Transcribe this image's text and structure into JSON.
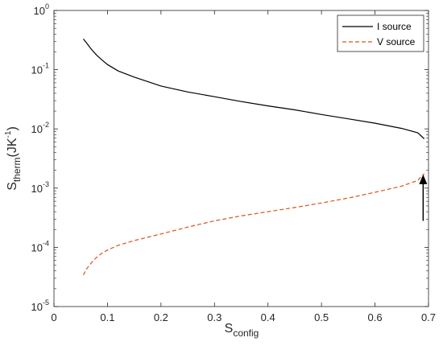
{
  "chart_data": {
    "type": "line",
    "xlabel_main": "S",
    "xlabel_sub": "config",
    "ylabel_main": "S",
    "ylabel_sub": "therm",
    "ylabel_unit_open": "(JK",
    "ylabel_unit_sup": "-1",
    "ylabel_unit_close": ")",
    "x_scale": "linear",
    "y_scale": "log",
    "xlim": [
      0,
      0.7
    ],
    "ylim": [
      1e-05,
      1
    ],
    "x_ticks": [
      0,
      0.1,
      0.2,
      0.3,
      0.4,
      0.5,
      0.6,
      0.7
    ],
    "x_tick_labels": [
      "0",
      "0.1",
      "0.2",
      "0.3",
      "0.4",
      "0.5",
      "0.6",
      "0.7"
    ],
    "y_ticks": [
      {
        "value": 1e-05,
        "base": "10",
        "exp": "-5"
      },
      {
        "value": 0.0001,
        "base": "10",
        "exp": "-4"
      },
      {
        "value": 0.001,
        "base": "10",
        "exp": "-3"
      },
      {
        "value": 0.01,
        "base": "10",
        "exp": "-2"
      },
      {
        "value": 0.1,
        "base": "10",
        "exp": "-1"
      },
      {
        "value": 1,
        "base": "10",
        "exp": "0"
      }
    ],
    "grid": false,
    "legend_position": "top-right",
    "series": [
      {
        "name": "I source",
        "color": "#000000",
        "dash": "solid",
        "points": [
          [
            0.055,
            0.33
          ],
          [
            0.06,
            0.29
          ],
          [
            0.07,
            0.22
          ],
          [
            0.08,
            0.175
          ],
          [
            0.09,
            0.145
          ],
          [
            0.1,
            0.122
          ],
          [
            0.12,
            0.095
          ],
          [
            0.15,
            0.075
          ],
          [
            0.2,
            0.053
          ],
          [
            0.25,
            0.042
          ],
          [
            0.3,
            0.035
          ],
          [
            0.35,
            0.029
          ],
          [
            0.4,
            0.0245
          ],
          [
            0.45,
            0.021
          ],
          [
            0.5,
            0.0175
          ],
          [
            0.55,
            0.0148
          ],
          [
            0.6,
            0.0125
          ],
          [
            0.65,
            0.0102
          ],
          [
            0.68,
            0.0086
          ],
          [
            0.692,
            0.0068
          ]
        ]
      },
      {
        "name": "V source",
        "color": "#d95319",
        "dash": "dashed",
        "points": [
          [
            0.055,
            3.4e-05
          ],
          [
            0.06,
            4.2e-05
          ],
          [
            0.07,
            5.5e-05
          ],
          [
            0.08,
            6.8e-05
          ],
          [
            0.09,
            8e-05
          ],
          [
            0.1,
            9e-05
          ],
          [
            0.12,
            0.000108
          ],
          [
            0.15,
            0.00013
          ],
          [
            0.2,
            0.000168
          ],
          [
            0.25,
            0.00022
          ],
          [
            0.3,
            0.00028
          ],
          [
            0.35,
            0.00034
          ],
          [
            0.4,
            0.0004
          ],
          [
            0.45,
            0.00047
          ],
          [
            0.5,
            0.00056
          ],
          [
            0.55,
            0.00068
          ],
          [
            0.6,
            0.00085
          ],
          [
            0.65,
            0.00108
          ],
          [
            0.68,
            0.00135
          ],
          [
            0.692,
            0.00175
          ]
        ]
      }
    ],
    "annotations": [
      {
        "type": "arrow",
        "direction": "up",
        "x": 0.69,
        "y_from": 0.00028,
        "y_to": 0.0015,
        "color": "#000000"
      }
    ]
  }
}
